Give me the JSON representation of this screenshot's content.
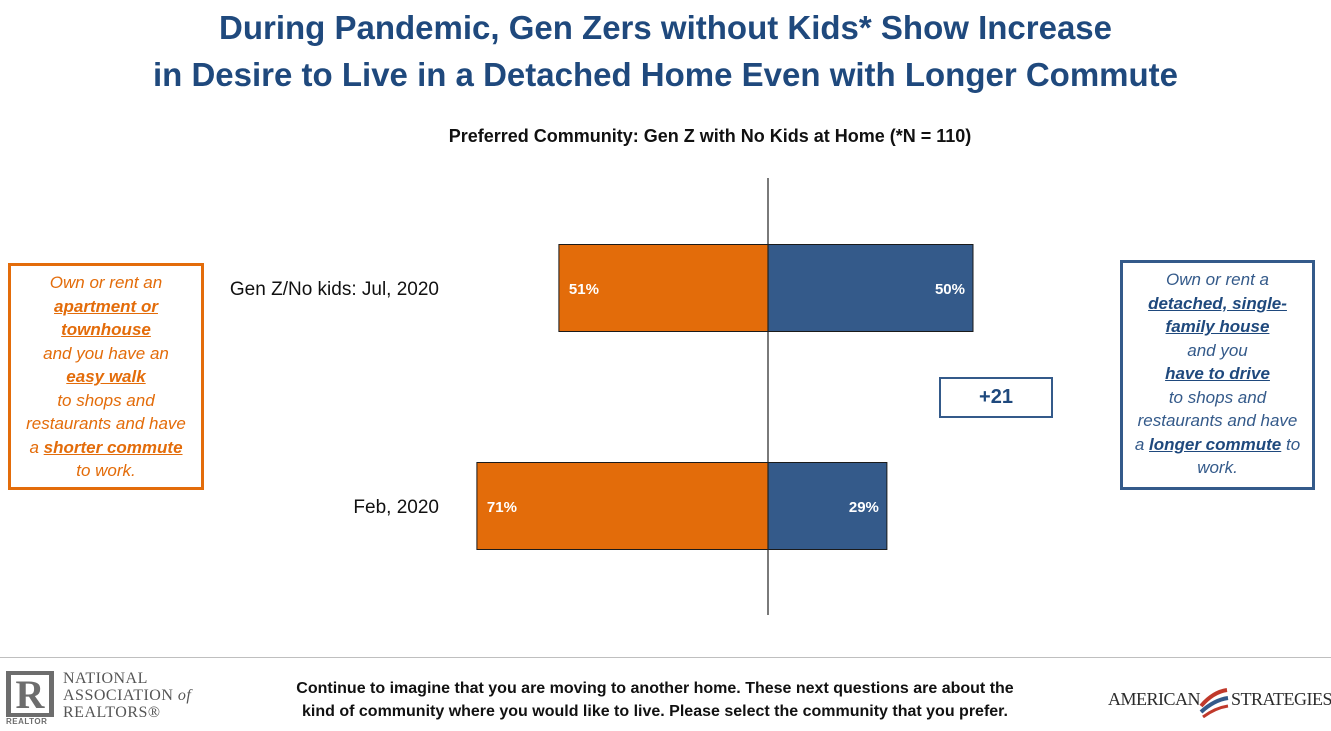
{
  "title": {
    "line1": "During Pandemic, Gen Zers without Kids* Show Increase",
    "line2": "in Desire to Live in a Detached Home Even with Longer Commute"
  },
  "chart_data": {
    "type": "bar",
    "orientation": "horizontal-diverging",
    "title": "Preferred Community: Gen Z with No Kids at Home (*N = 110)",
    "categories": [
      "Gen Z/No kids: Jul, 2020",
      "Feb, 2020"
    ],
    "series": [
      {
        "name": "Apartment or townhouse, easy walk, shorter commute",
        "values": [
          51,
          71
        ],
        "labels": [
          "51%",
          "71%"
        ],
        "color": "#e36c0a",
        "side": "left"
      },
      {
        "name": "Detached single-family house, drive, longer commute",
        "values": [
          50,
          29
        ],
        "labels": [
          "50%",
          "29%"
        ],
        "color": "#345a8a",
        "side": "right"
      }
    ],
    "xlim": [
      -75,
      75
    ],
    "difference_label": "+21"
  },
  "left_box": {
    "lines": [
      [
        {
          "t": "Own or rent an",
          "em": false
        }
      ],
      [
        {
          "t": "apartment or",
          "em": true
        }
      ],
      [
        {
          "t": "townhouse",
          "em": true
        }
      ],
      [
        {
          "t": "and you have an",
          "em": false
        }
      ],
      [
        {
          "t": "easy walk",
          "em": true
        }
      ],
      [
        {
          "t": "to shops and",
          "em": false
        }
      ],
      [
        {
          "t": "restaurants and have",
          "em": false
        }
      ],
      [
        {
          "t": "a ",
          "em": false
        },
        {
          "t": "shorter commute",
          "em": true
        }
      ],
      [
        {
          "t": "to work.",
          "em": false
        }
      ]
    ]
  },
  "right_box": {
    "lines": [
      [
        {
          "t": "Own or rent a",
          "em": false
        }
      ],
      [
        {
          "t": "detached, single-",
          "em": true
        }
      ],
      [
        {
          "t": "family house",
          "em": true
        }
      ],
      [
        {
          "t": "and you",
          "em": false
        }
      ],
      [
        {
          "t": "have to drive",
          "em": true
        }
      ],
      [
        {
          "t": "to shops and",
          "em": false
        }
      ],
      [
        {
          "t": "restaurants and have",
          "em": false
        }
      ],
      [
        {
          "t": "a ",
          "em": false
        },
        {
          "t": "longer commute",
          "em": true
        },
        {
          "t": " to",
          "em": false
        }
      ],
      [
        {
          "t": "work.",
          "em": false
        }
      ]
    ]
  },
  "footnote": {
    "line1": "Continue to imagine that you are moving to another home. These next questions are about the",
    "line2": "kind of community where you would like to live. Please select the community that you prefer."
  },
  "logos": {
    "nar": {
      "mark": "R",
      "tag": "REALTOR",
      "line1": "NATIONAL",
      "line2": "ASSOCIATION",
      "of": "of",
      "line3": "REALTORS®"
    },
    "american_strategies": {
      "word1": "AMERICAN",
      "word2": "STRATEGIES"
    }
  },
  "colors": {
    "title": "#1f497d",
    "orange": "#e36c0a",
    "blue": "#345a8a"
  }
}
